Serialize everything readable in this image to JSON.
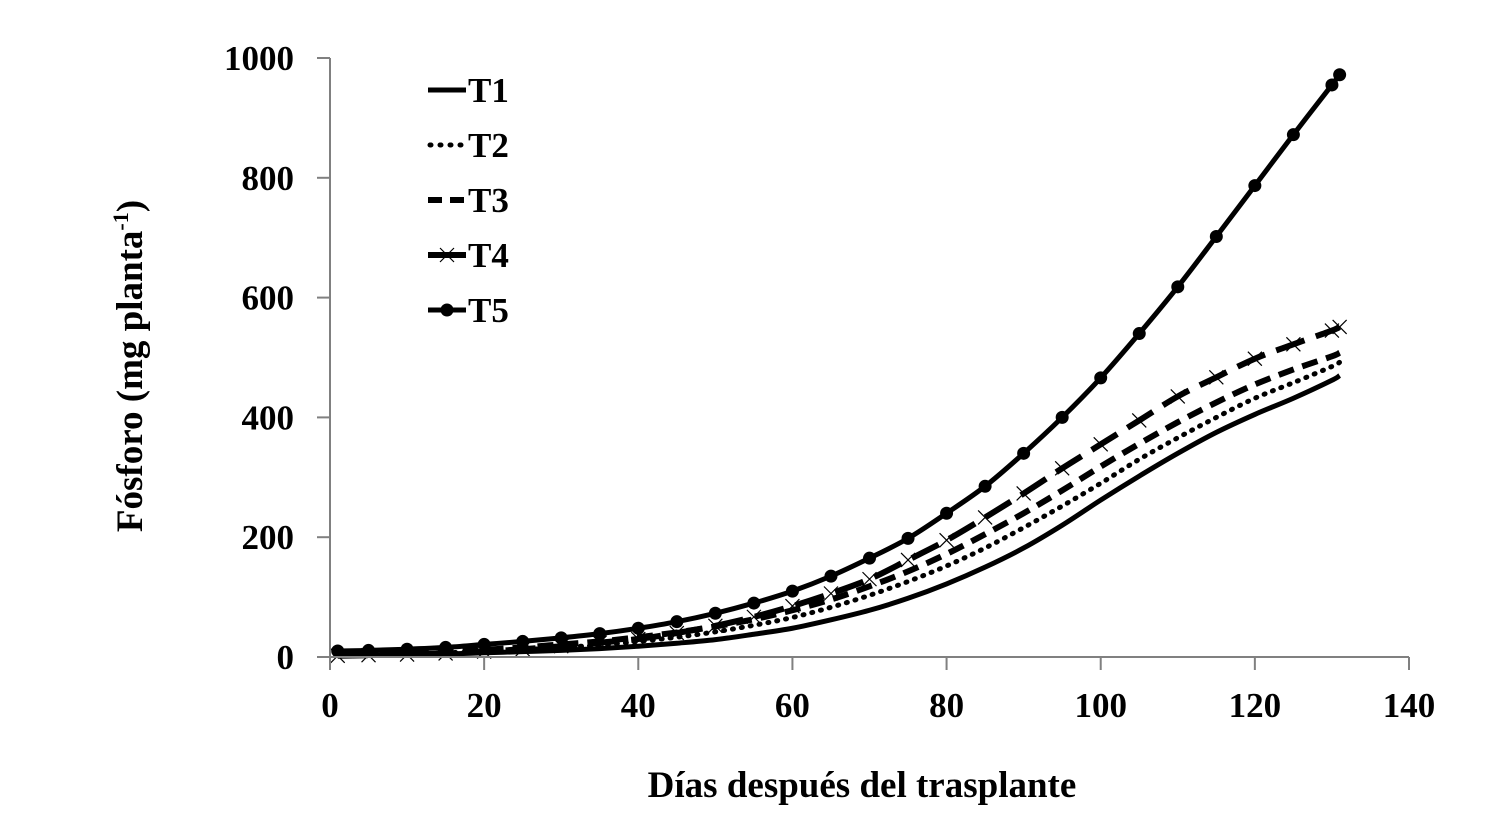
{
  "chart_data": {
    "type": "line",
    "title": "",
    "xlabel": "Días después del trasplante",
    "ylabel": "Fósforo (mg planta",
    "ylabel_superscript": "-1",
    "ylabel_suffix": ")",
    "xlim": [
      0,
      140
    ],
    "ylim": [
      0,
      1000
    ],
    "x_ticks": [
      0,
      20,
      40,
      60,
      80,
      100,
      120,
      140
    ],
    "y_ticks": [
      0,
      200,
      400,
      600,
      800,
      1000
    ],
    "grid": false,
    "legend_position": "upper-left",
    "x": [
      1,
      5,
      10,
      15,
      20,
      25,
      30,
      35,
      40,
      45,
      50,
      55,
      60,
      65,
      70,
      75,
      80,
      85,
      90,
      95,
      100,
      105,
      110,
      115,
      120,
      125,
      130,
      131
    ],
    "series": [
      {
        "name": "T1",
        "style": "solid",
        "marker": "none",
        "values": [
          2,
          3,
          4,
          5,
          7,
          9,
          11,
          14,
          18,
          23,
          29,
          38,
          48,
          62,
          78,
          98,
          122,
          150,
          182,
          220,
          262,
          302,
          340,
          375,
          405,
          432,
          462,
          470
        ]
      },
      {
        "name": "T2",
        "style": "dotted",
        "marker": "none",
        "values": [
          3,
          4,
          5,
          7,
          9,
          12,
          16,
          20,
          26,
          33,
          42,
          53,
          66,
          83,
          103,
          126,
          152,
          182,
          216,
          252,
          290,
          330,
          366,
          400,
          432,
          458,
          485,
          492
        ]
      },
      {
        "name": "T3",
        "style": "dashed",
        "marker": "none",
        "values": [
          4,
          5,
          7,
          9,
          12,
          16,
          21,
          26,
          33,
          41,
          51,
          63,
          78,
          96,
          118,
          143,
          172,
          205,
          240,
          278,
          318,
          356,
          392,
          425,
          455,
          480,
          502,
          508
        ]
      },
      {
        "name": "T4",
        "style": "long-dash",
        "marker": "x",
        "values": [
          2,
          3,
          4,
          6,
          9,
          13,
          18,
          24,
          30,
          40,
          52,
          67,
          85,
          106,
          130,
          162,
          195,
          233,
          273,
          315,
          355,
          395,
          435,
          467,
          498,
          522,
          545,
          551
        ]
      },
      {
        "name": "T5",
        "style": "solid",
        "marker": "circle",
        "values": [
          10,
          11,
          13,
          16,
          21,
          26,
          32,
          39,
          48,
          59,
          73,
          90,
          110,
          135,
          165,
          198,
          240,
          285,
          340,
          400,
          466,
          540,
          618,
          702,
          787,
          872,
          955,
          972
        ]
      }
    ]
  },
  "legend": {
    "items": [
      {
        "label": "T1"
      },
      {
        "label": "T2"
      },
      {
        "label": "T3"
      },
      {
        "label": "T4"
      },
      {
        "label": "T5"
      }
    ]
  },
  "colors": {
    "line": "#000000",
    "axis": "#808080",
    "background": "#ffffff"
  }
}
